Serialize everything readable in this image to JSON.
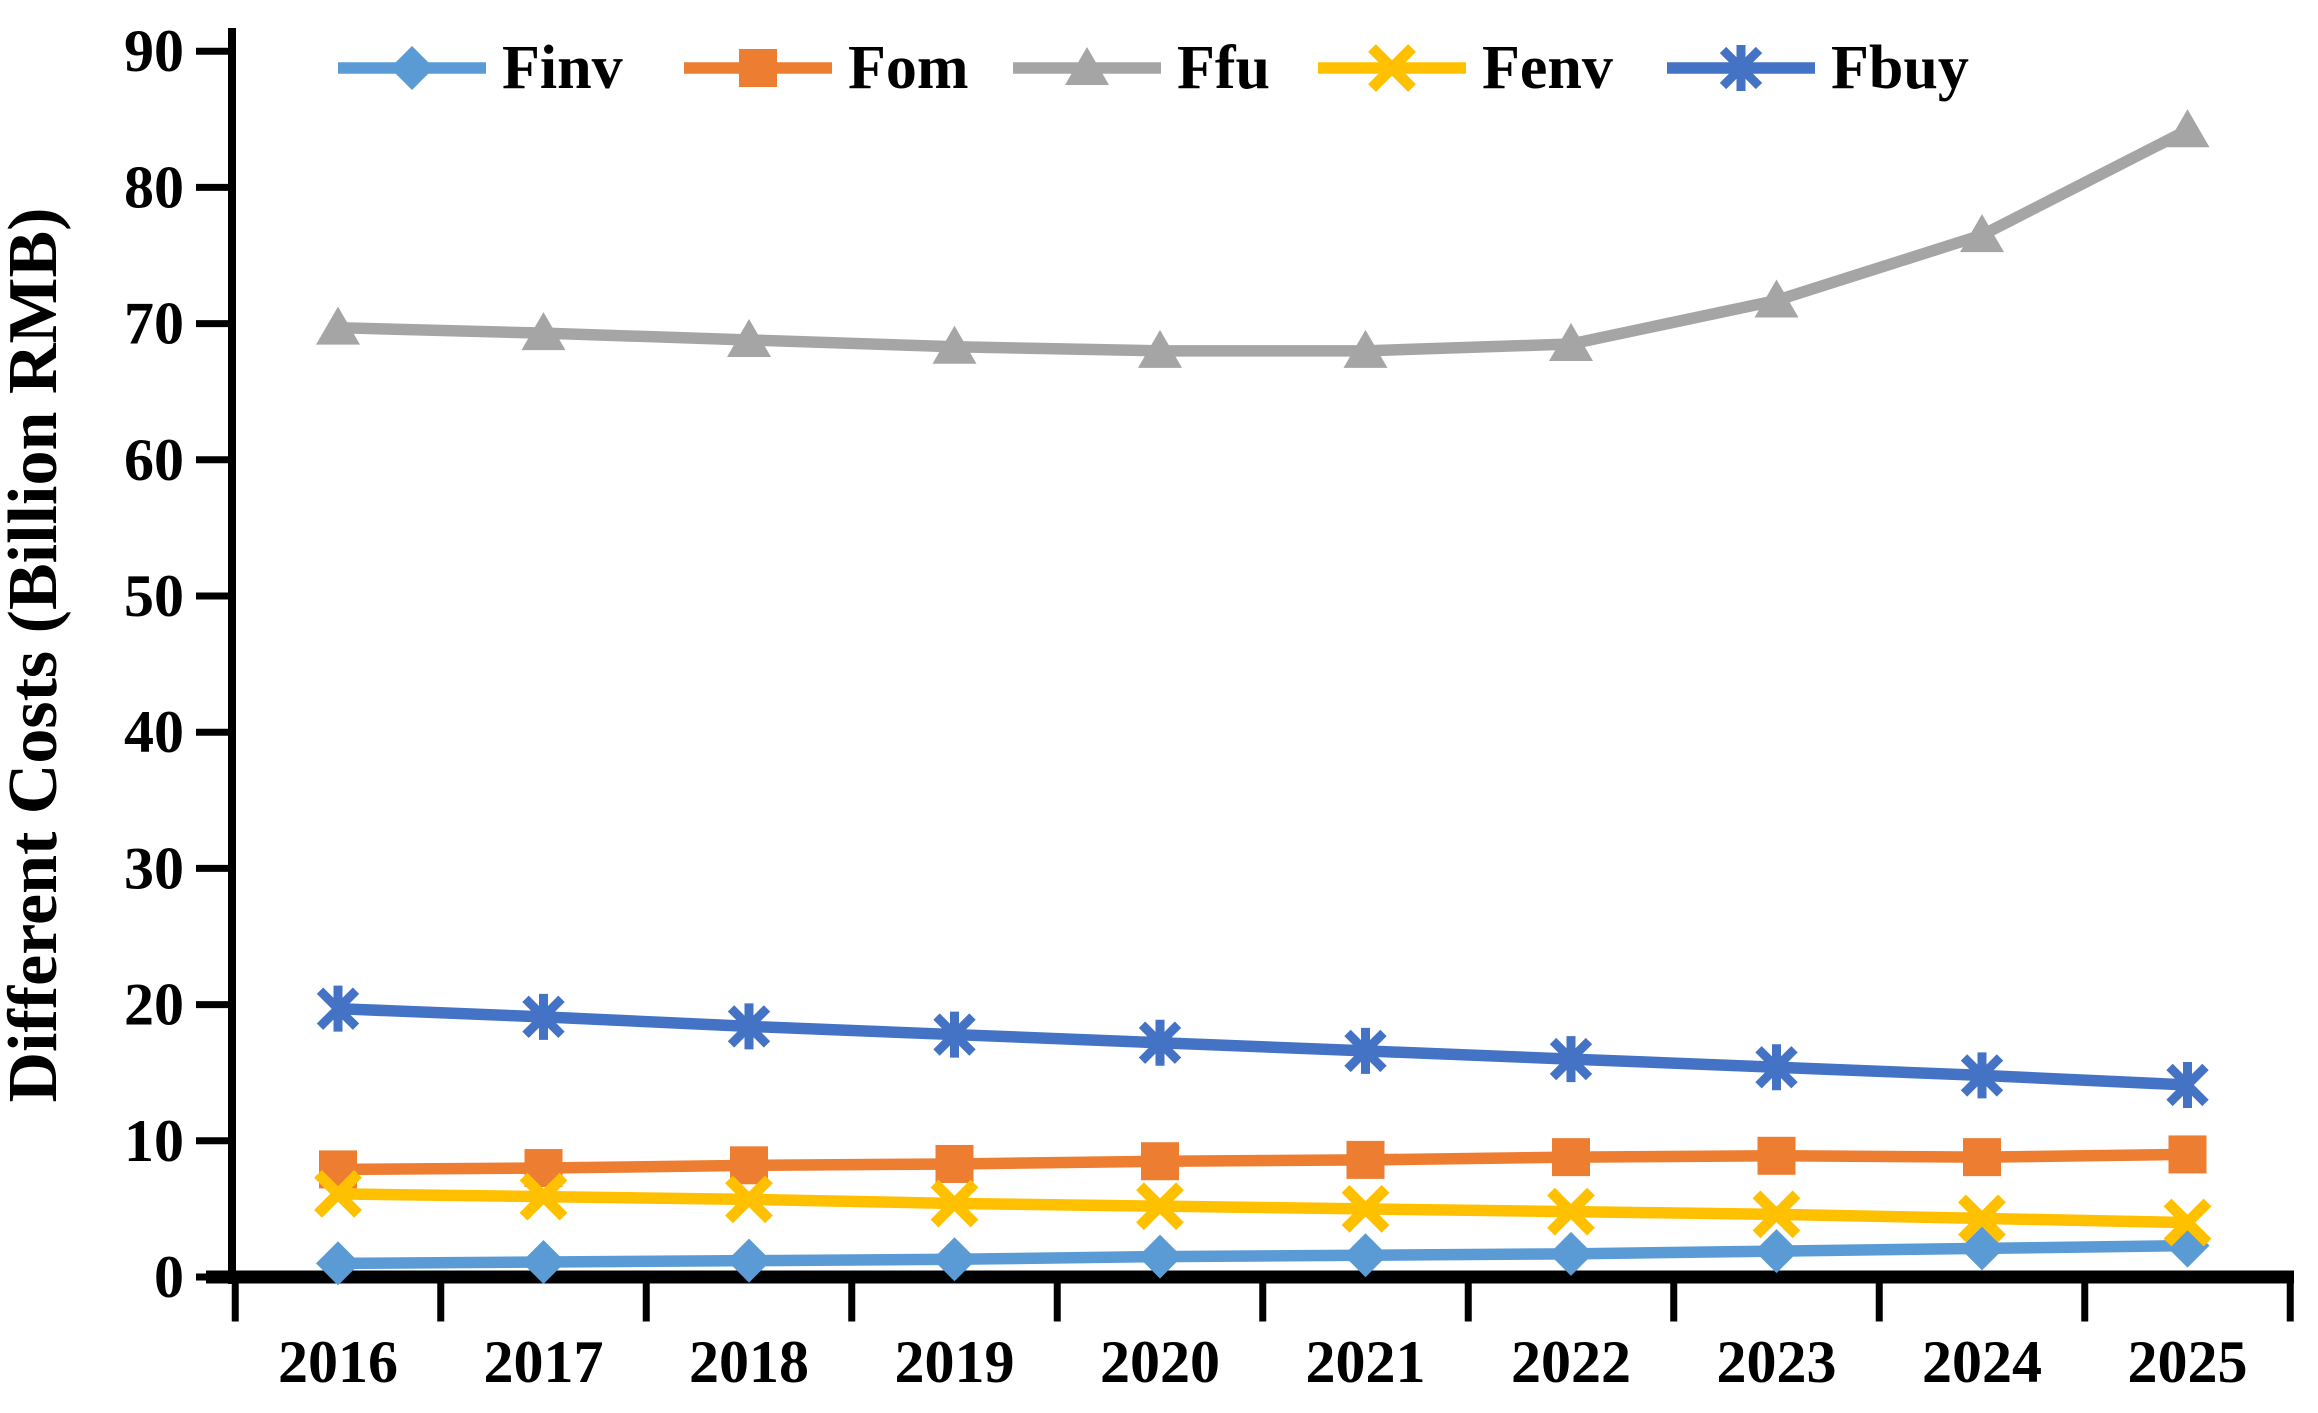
{
  "chart_data": {
    "type": "line",
    "title": "",
    "xlabel": "",
    "ylabel": "Different Costs (Billion RMB)",
    "x": [
      "2016",
      "2017",
      "2018",
      "2019",
      "2020",
      "2021",
      "2022",
      "2023",
      "2024",
      "2025"
    ],
    "ylim": [
      0,
      90
    ],
    "ytick_step": 10,
    "ytick_labels": [
      "0",
      "10",
      "20",
      "30",
      "40",
      "50",
      "60",
      "70",
      "80",
      "90"
    ],
    "grid": false,
    "legend_position": "top-inside-horizontal",
    "background_color": "#FFFFFF",
    "axis_color": "#000000",
    "text_color": "#000000",
    "series": [
      {
        "name": "Finv",
        "color": "#5B9BD5",
        "marker": "diamond",
        "values": [
          1.0,
          1.1,
          1.2,
          1.3,
          1.5,
          1.6,
          1.7,
          1.9,
          2.1,
          2.3
        ]
      },
      {
        "name": "Fom",
        "color": "#ED7D31",
        "marker": "square",
        "values": [
          7.9,
          8.0,
          8.2,
          8.3,
          8.5,
          8.6,
          8.8,
          8.9,
          8.8,
          9.0
        ]
      },
      {
        "name": "Ffu",
        "color": "#A5A5A5",
        "marker": "triangle",
        "values": [
          69.7,
          69.3,
          68.8,
          68.3,
          68.0,
          68.0,
          68.5,
          71.7,
          76.5,
          84.2
        ]
      },
      {
        "name": "Fenv",
        "color": "#FFC000",
        "marker": "x",
        "values": [
          6.1,
          5.9,
          5.7,
          5.4,
          5.2,
          5.0,
          4.8,
          4.6,
          4.3,
          4.0
        ]
      },
      {
        "name": "Fbuy",
        "color": "#4472C4",
        "marker": "asterisk",
        "values": [
          19.7,
          19.1,
          18.4,
          17.8,
          17.2,
          16.6,
          16.0,
          15.4,
          14.8,
          14.1
        ]
      }
    ]
  }
}
